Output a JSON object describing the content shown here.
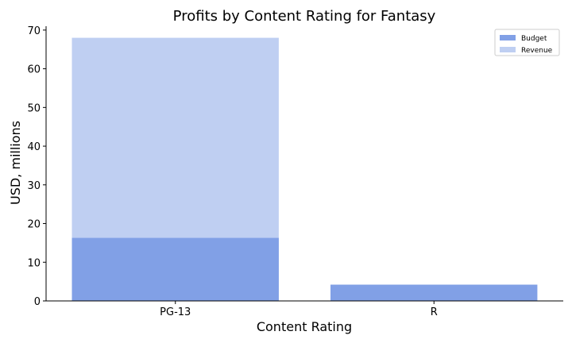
{
  "chart_data": {
    "type": "bar",
    "stacked": "overlay",
    "title": "Profits by Content Rating for Fantasy",
    "xlabel": "Content Rating",
    "ylabel": "USD, millions",
    "categories": [
      "PG-13",
      "R"
    ],
    "series": [
      {
        "name": "Revenue",
        "values": [
          68.0,
          null
        ],
        "color": "#bfcff2"
      },
      {
        "name": "Budget",
        "values": [
          16.3,
          4.2
        ],
        "color": "#81a0e6"
      }
    ],
    "ylim": [
      0,
      71
    ],
    "yticks": [
      0,
      10,
      20,
      30,
      40,
      50,
      60,
      70
    ],
    "legend": {
      "placement": "top-right",
      "entries": [
        {
          "label": "Budget",
          "color": "#81a0e6"
        },
        {
          "label": "Revenue",
          "color": "#bfcff2"
        }
      ]
    },
    "grid": false
  }
}
